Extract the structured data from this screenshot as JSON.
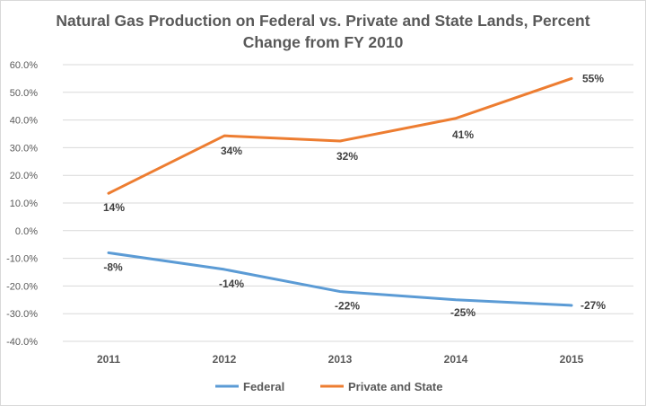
{
  "chart_data": {
    "type": "line",
    "title": "Natural Gas Production on Federal vs. Private and State Lands, Percent Change from FY 2010",
    "xlabel": "",
    "ylabel": "",
    "categories": [
      "2011",
      "2012",
      "2013",
      "2014",
      "2015"
    ],
    "ylim": [
      -40,
      60
    ],
    "ytick_step": 10,
    "ytick_labels": [
      "60.0%",
      "50.0%",
      "40.0%",
      "30.0%",
      "20.0%",
      "10.0%",
      "0.0%",
      "-10.0%",
      "-20.0%",
      "-30.0%",
      "-40.0%"
    ],
    "grid": true,
    "legend_position": "bottom",
    "series": [
      {
        "name": "Federal",
        "color": "#5b9bd5",
        "values": [
          -8,
          -14,
          -22,
          -25,
          -27
        ],
        "labels": [
          "-8%",
          "-14%",
          "-22%",
          "-25%",
          "-27%"
        ]
      },
      {
        "name": "Private and State",
        "color": "#ed7d31",
        "values": [
          13.5,
          34.3,
          32.4,
          40.6,
          55
        ],
        "labels": [
          "14%",
          "34%",
          "32%",
          "41%",
          "55%"
        ]
      }
    ]
  }
}
